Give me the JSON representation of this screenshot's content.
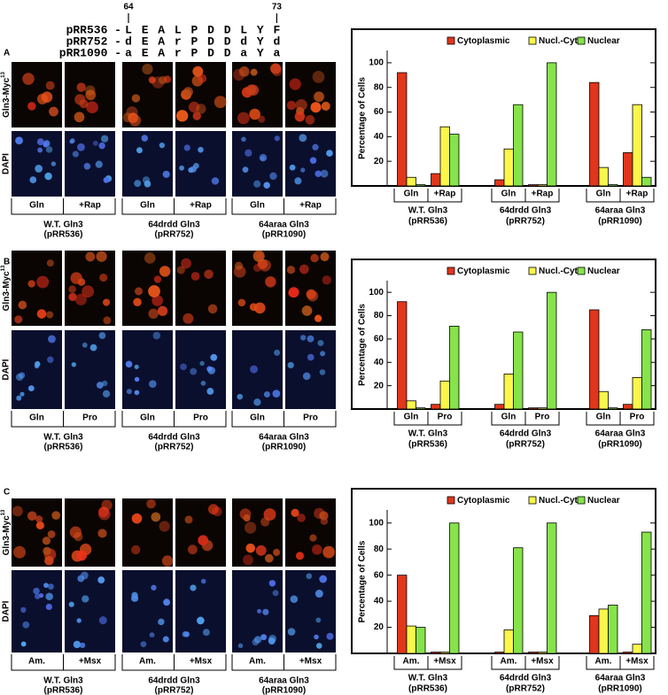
{
  "sequence": {
    "positions": [
      64,
      73
    ],
    "rows": [
      {
        "name": "pRR536 -",
        "residues": [
          "L",
          "E",
          "A",
          "L",
          "P",
          "D",
          "D",
          "L",
          "Y",
          "F"
        ]
      },
      {
        "name": "pRR752 -",
        "residues": [
          "d",
          "E",
          "A",
          "r",
          "P",
          "D",
          "D",
          "d",
          "Y",
          "d"
        ]
      },
      {
        "name": "pRR1090 -",
        "residues": [
          "a",
          "E",
          "A",
          "r",
          "P",
          "D",
          "D",
          "a",
          "Y",
          "a"
        ]
      }
    ],
    "residue_colors": {
      "d": "#d9531e",
      "r": "#2a35b0",
      "a": "#7cc44e"
    }
  },
  "panels": [
    "A",
    "B",
    "C"
  ],
  "row_labels": {
    "myc": "Gln3-Myc",
    "sup": "13",
    "dapi": "DAPI"
  },
  "chart_data": [
    {
      "type": "bar",
      "ylabel": "Percentage of Cells",
      "categories": [
        "Gln",
        "+Rap",
        "Gln",
        "+Rap",
        "Gln",
        "+Rap"
      ],
      "groups": [
        "W.T. Gln3",
        "64drdd Gln3",
        "64araa Gln3"
      ],
      "group_notes": [
        "(pRR536)",
        "(pRR752)",
        "(pRR1090)"
      ],
      "series": [
        {
          "name": "Cytoplasmic",
          "color": "#e0361c",
          "values": [
            92,
            10,
            5,
            1,
            84,
            27
          ]
        },
        {
          "name": "Nucl.-Cyto.",
          "color": "#fbf64a",
          "values": [
            7,
            48,
            30,
            1,
            15,
            66
          ]
        },
        {
          "name": "Nuclear",
          "color": "#86e34a",
          "values": [
            1,
            42,
            66,
            100,
            1,
            7
          ]
        }
      ],
      "ylim": [
        0,
        110
      ],
      "yticks": [
        20,
        40,
        60,
        80,
        100
      ]
    },
    {
      "type": "bar",
      "ylabel": "Percentage of Cells",
      "categories": [
        "Gln",
        "Pro",
        "Gln",
        "Pro",
        "Gln",
        "Pro"
      ],
      "groups": [
        "W.T. Gln3",
        "64drdd Gln3",
        "64araa Gln3"
      ],
      "group_notes": [
        "(pRR536)",
        "(pRR752)",
        "(pRR1090)"
      ],
      "series": [
        {
          "name": "Cytoplasmic",
          "color": "#e0361c",
          "values": [
            92,
            4,
            4,
            1,
            85,
            4
          ]
        },
        {
          "name": "Nucl.-Cyto.",
          "color": "#fbf64a",
          "values": [
            7,
            24,
            30,
            1,
            15,
            27
          ]
        },
        {
          "name": "Nuclear",
          "color": "#86e34a",
          "values": [
            1,
            71,
            66,
            100,
            1,
            68
          ]
        }
      ],
      "ylim": [
        0,
        110
      ],
      "yticks": [
        20,
        40,
        60,
        80,
        100
      ]
    },
    {
      "type": "bar",
      "ylabel": "Percentage of Cells",
      "categories": [
        "Am.",
        "+Msx",
        "Am.",
        "+Msx",
        "Am.",
        "+Msx"
      ],
      "groups": [
        "W.T. Gln3",
        "64drdd Gln3",
        "64araa Gln3"
      ],
      "group_notes": [
        "(pRR536)",
        "(pRR752)",
        "(pRR1090)"
      ],
      "series": [
        {
          "name": "Cytoplasmic",
          "color": "#e0361c",
          "values": [
            60,
            1,
            1,
            1,
            29,
            1
          ]
        },
        {
          "name": "Nucl.-Cyto.",
          "color": "#fbf64a",
          "values": [
            21,
            1,
            18,
            1,
            34,
            7
          ]
        },
        {
          "name": "Nuclear",
          "color": "#86e34a",
          "values": [
            20,
            100,
            81,
            100,
            37,
            93
          ]
        }
      ],
      "ylim": [
        0,
        110
      ],
      "yticks": [
        20,
        40,
        60,
        80,
        100
      ]
    }
  ]
}
